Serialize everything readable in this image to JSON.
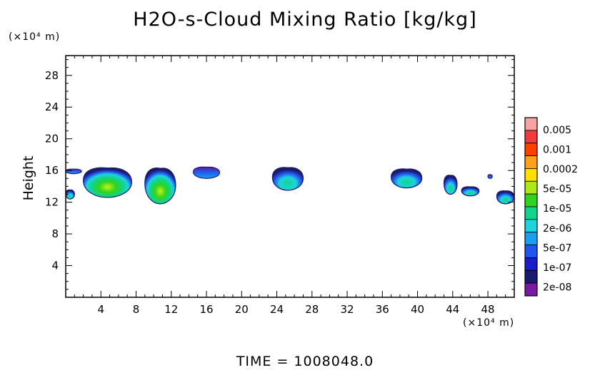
{
  "chart_data": {
    "type": "heatmap",
    "title": "H2O-s-Cloud Mixing Ratio [kg/kg]",
    "xlabel": "",
    "ylabel": "Height",
    "x_unit_label": "(×10⁴ m)",
    "y_unit_label": "(×10⁴ m)",
    "xlim": [
      0,
      51
    ],
    "ylim": [
      0,
      30.5
    ],
    "x_ticks": [
      4,
      8,
      12,
      16,
      20,
      24,
      28,
      32,
      36,
      40,
      44,
      48
    ],
    "y_ticks": [
      4,
      8,
      12,
      16,
      20,
      24,
      28
    ],
    "grid": false,
    "colorbar": {
      "labels": [
        "0.005",
        "0.001",
        "0.0002",
        "5e-05",
        "1e-05",
        "2e-06",
        "5e-07",
        "1e-07",
        "2e-08"
      ],
      "colors": [
        "#f7a3a3",
        "#ef3b3b",
        "#ff4000",
        "#ff9f1a",
        "#ffe000",
        "#aee81a",
        "#2fd41e",
        "#11d48a",
        "#1ed3e0",
        "#1a9ef0",
        "#2255ee",
        "#1a1cc8",
        "#1a1a6e",
        "#7a1aa0"
      ]
    },
    "cloud_regions": [
      {
        "x": [
          0,
          1
        ],
        "y": [
          12.4,
          13.6
        ],
        "level": "5e-06"
      },
      {
        "x": [
          0,
          1.8
        ],
        "y": [
          15.6,
          16.2
        ],
        "level": "1e-07"
      },
      {
        "x": [
          2,
          7.5
        ],
        "y": [
          12.6,
          16.5
        ],
        "level": "5e-05"
      },
      {
        "x": [
          9,
          12.5
        ],
        "y": [
          11.8,
          16.5
        ],
        "level": "5e-05"
      },
      {
        "x": [
          14.5,
          17.5
        ],
        "y": [
          15,
          16.5
        ],
        "level": "1e-07"
      },
      {
        "x": [
          23.5,
          27
        ],
        "y": [
          13.5,
          16.5
        ],
        "level": "5e-06"
      },
      {
        "x": [
          37,
          40.5
        ],
        "y": [
          13.8,
          16.3
        ],
        "level": "5e-06"
      },
      {
        "x": [
          43,
          44.5
        ],
        "y": [
          13,
          15.5
        ],
        "level": "5e-06"
      },
      {
        "x": [
          45,
          47
        ],
        "y": [
          12.8,
          14
        ],
        "level": "5e-06"
      },
      {
        "x": [
          48,
          48.5
        ],
        "y": [
          15,
          15.5
        ],
        "level": "1e-07"
      },
      {
        "x": [
          49,
          51
        ],
        "y": [
          11.8,
          13.5
        ],
        "level": "5e-06"
      }
    ]
  },
  "footer": {
    "time_label": "TIME  =  1008048.0"
  }
}
